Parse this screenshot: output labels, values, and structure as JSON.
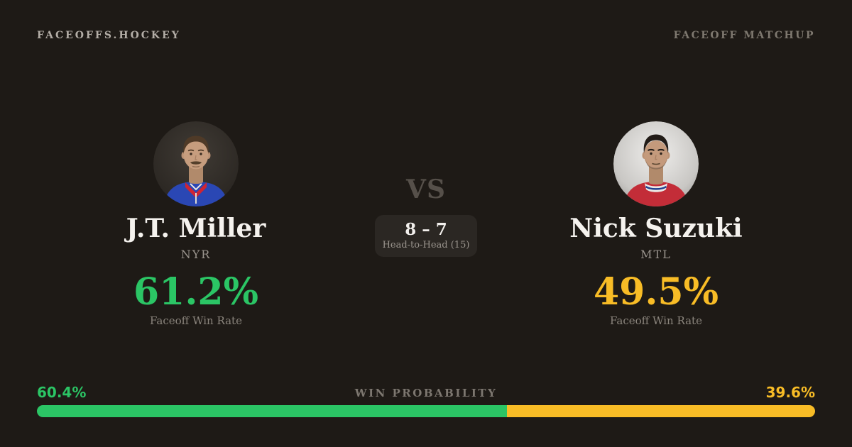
{
  "header": {
    "brand": "FACEOFFS.HOCKEY",
    "page_label": "FACEOFF MATCHUP"
  },
  "players": {
    "left": {
      "name": "J.T. Miller",
      "team": "NYR",
      "rate": "61.2%",
      "rate_label": "Faceoff Win Rate",
      "accent_color": "#2bc565",
      "avatar_icon": "jt-miller-headshot"
    },
    "right": {
      "name": "Nick Suzuki",
      "team": "MTL",
      "rate": "49.5%",
      "rate_label": "Faceoff Win Rate",
      "accent_color": "#f8bc26",
      "avatar_icon": "nick-suzuki-headshot"
    }
  },
  "matchup": {
    "vs_label": "VS",
    "h2h_score": "8 – 7",
    "h2h_label": "Head-to-Head (15)"
  },
  "win_probability": {
    "label": "WIN PROBABILITY",
    "left_pct": "60.4%",
    "right_pct": "39.6%",
    "left_value": 60.4,
    "right_value": 39.6,
    "left_color": "#2bc565",
    "right_color": "#f8bc26"
  },
  "colors": {
    "background": "#1e1a16",
    "green": "#2bc565",
    "yellow": "#f8bc26"
  }
}
